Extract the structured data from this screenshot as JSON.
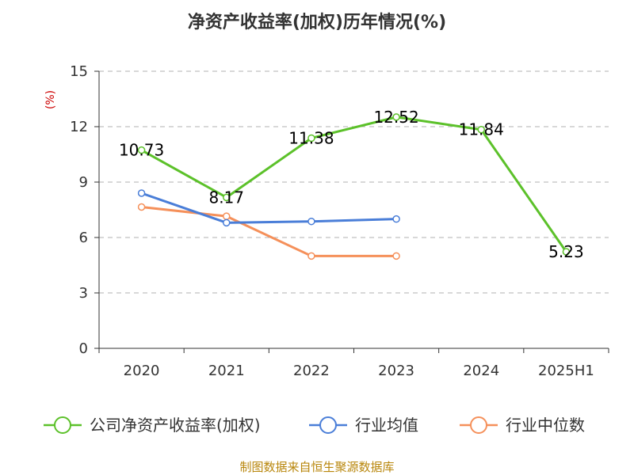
{
  "chart_data": {
    "type": "line",
    "title": "净资产收益率(加权)历年情况(%)",
    "ylabel": "(%)",
    "categories": [
      "2020",
      "2021",
      "2022",
      "2023",
      "2024",
      "2025H1"
    ],
    "yticks": [
      "0",
      "3",
      "6",
      "9",
      "12",
      "15"
    ],
    "ylim": [
      0,
      15
    ],
    "grid": true,
    "legend_position": "bottom",
    "series": [
      {
        "name": "公司净资产收益率(加权)",
        "color": "#5cc12a",
        "values": [
          10.73,
          8.17,
          11.38,
          12.52,
          11.84,
          5.23
        ],
        "labels": [
          "10.73",
          "8.17",
          "11.38",
          "12.52",
          "11.84",
          "5.23"
        ]
      },
      {
        "name": "行业均值",
        "color": "#4a7ed8",
        "values": [
          8.4,
          6.8,
          6.87,
          7.0,
          null,
          null
        ]
      },
      {
        "name": "行业中位数",
        "color": "#f5905a",
        "values": [
          7.65,
          7.15,
          5.0,
          5.0,
          null,
          null
        ]
      }
    ]
  },
  "footer": {
    "source": "制图数据来自恒生聚源数据库"
  }
}
